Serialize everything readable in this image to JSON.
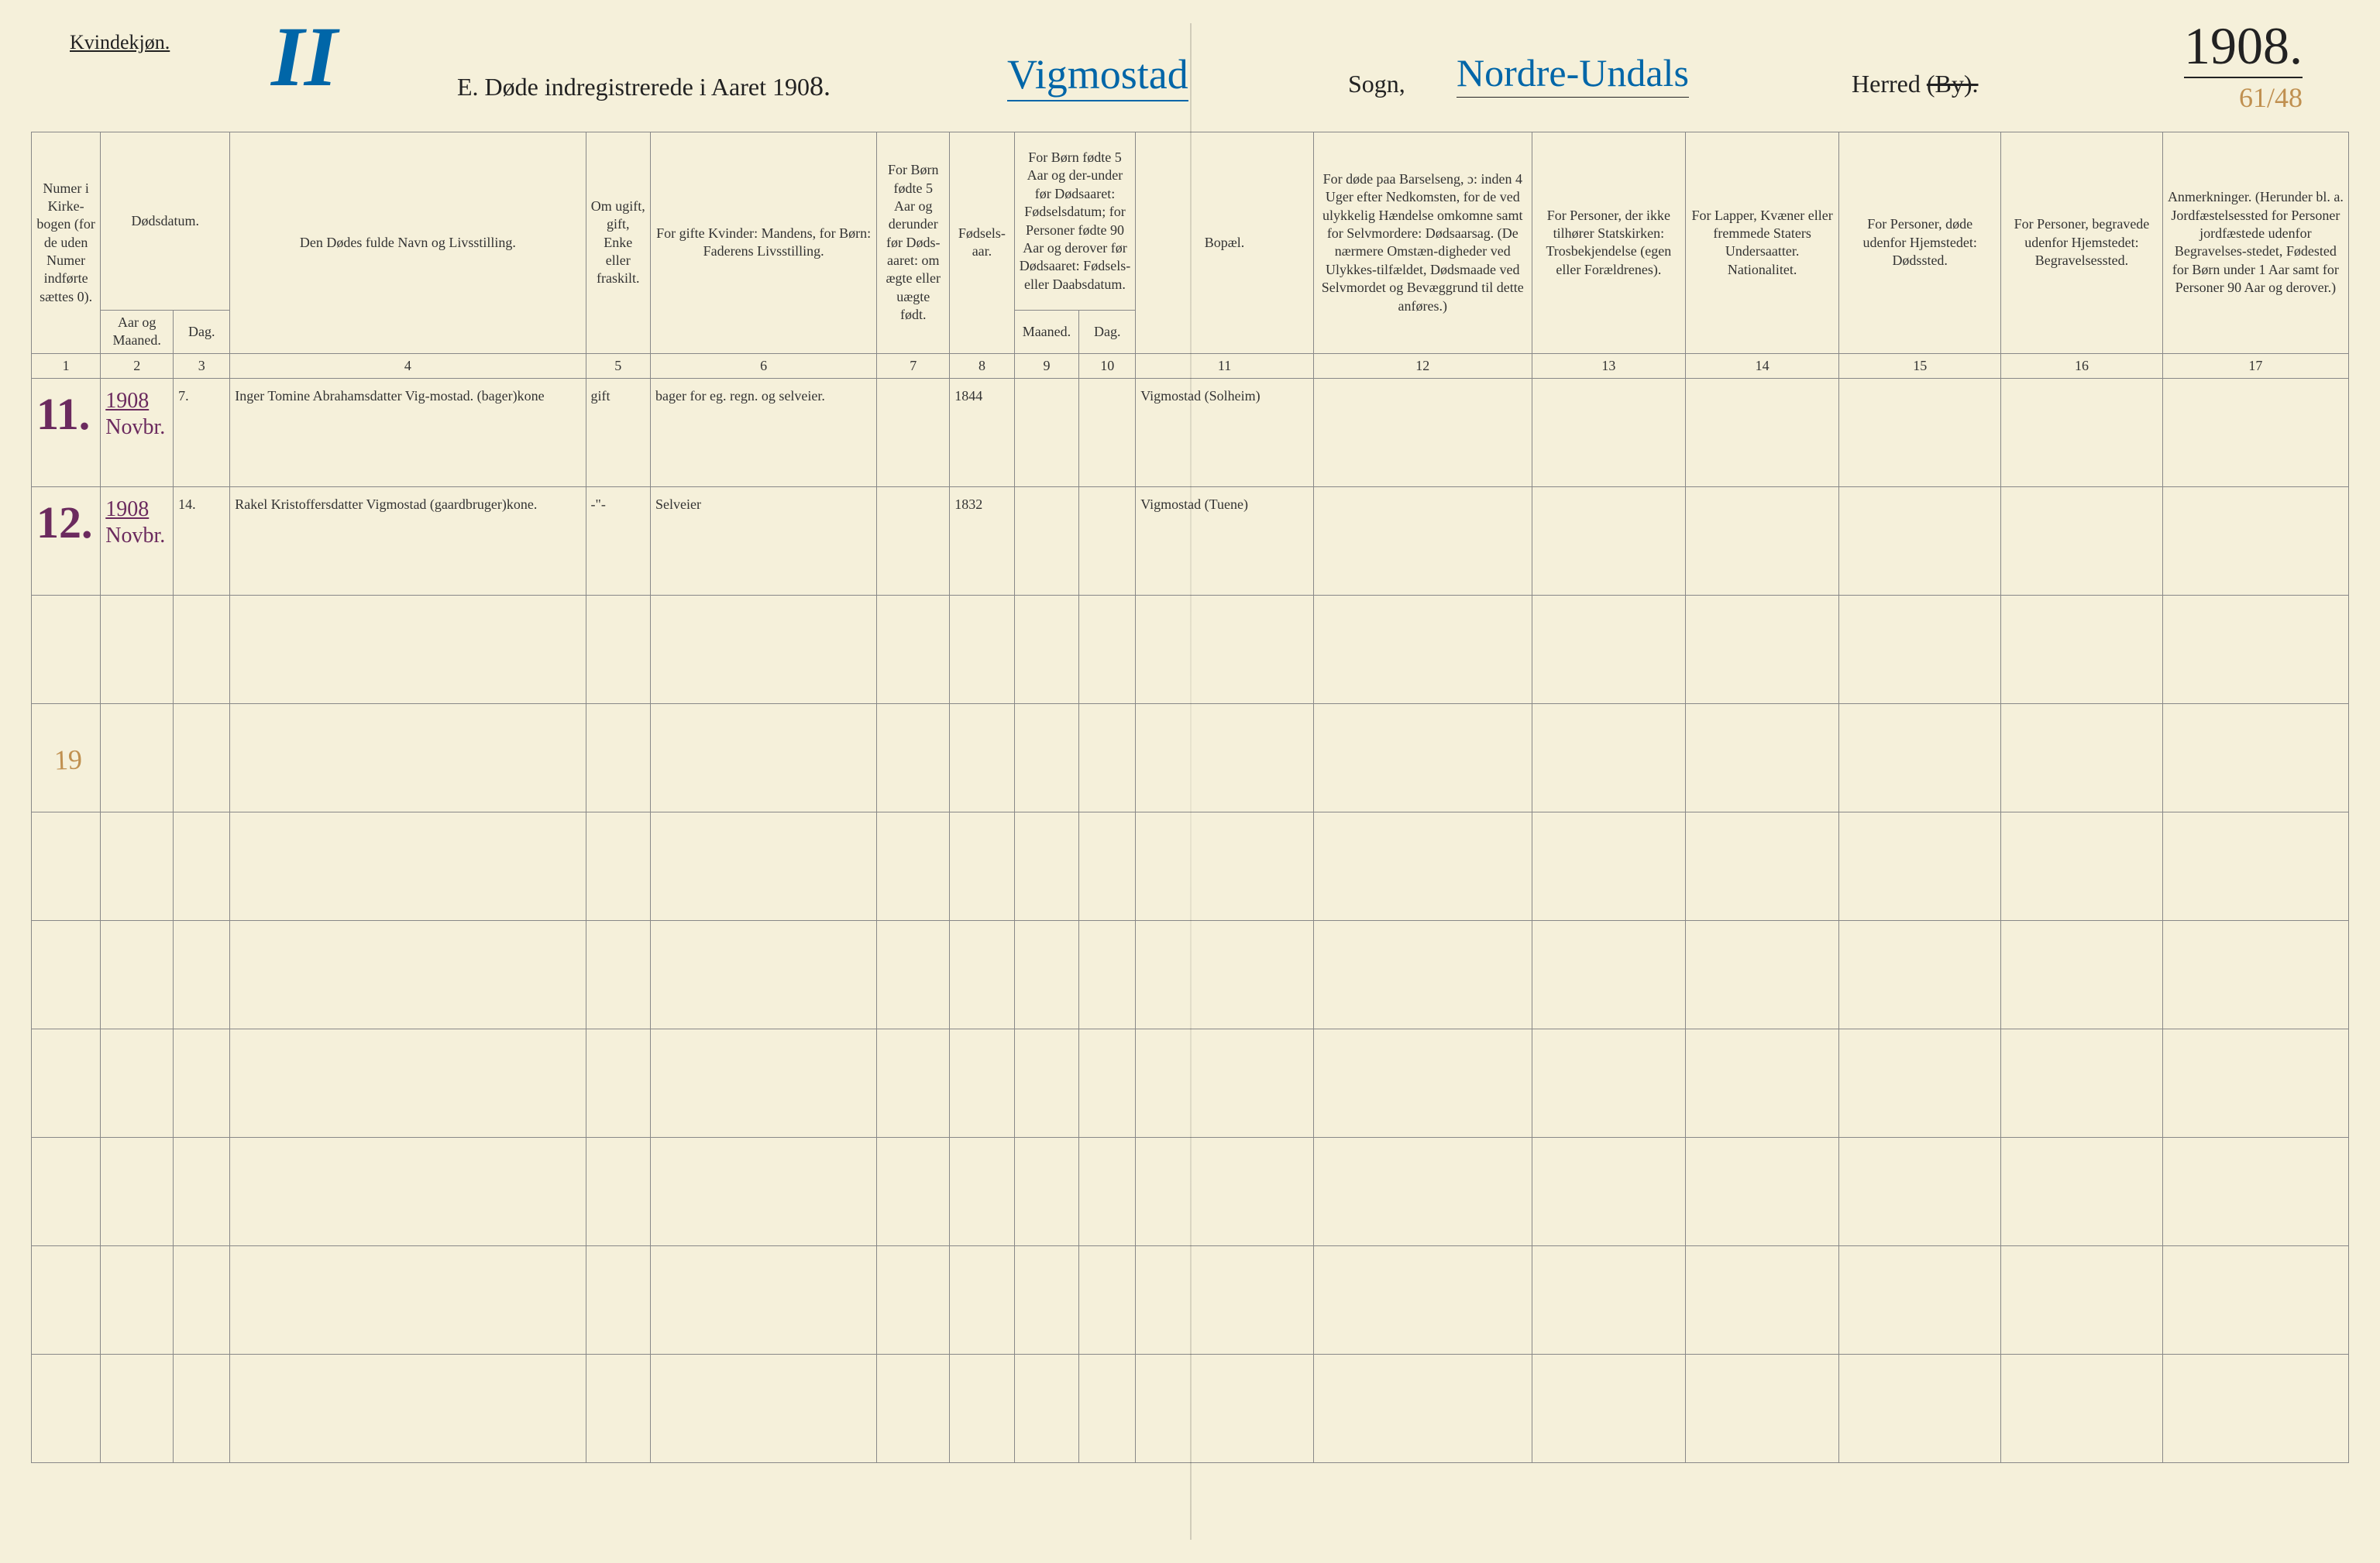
{
  "header": {
    "kvindekjon": "Kvindekjøn.",
    "roman": "II",
    "title_prefix": "E.  Døde indregistrerede i Aaret 190",
    "title_year_digit": "8.",
    "sogn_name": "Vigmostad",
    "sogn_label": "Sogn,",
    "herred_name": "Nordre-Undals",
    "herred_label": "Herred",
    "herred_by": "(By).",
    "top_year": "1908.",
    "folio": "61/48"
  },
  "columns": {
    "c1": "Numer i Kirke-bogen (for de uden Numer indførte sættes 0).",
    "c2_top": "Dødsdatum.",
    "c2a": "Aar og Maaned.",
    "c2b": "Dag.",
    "c4": "Den Dødes fulde Navn og Livsstilling.",
    "c5": "Om ugift, gift, Enke eller fraskilt.",
    "c6": "For gifte Kvinder: Mandens, for Børn: Faderens Livsstilling.",
    "c7": "For Børn fødte 5 Aar og derunder før Døds-aaret: om ægte eller uægte født.",
    "c8": "Fødsels-aar.",
    "c9_top": "For Børn fødte 5 Aar og der-under før Dødsaaret: Fødselsdatum; for Personer fødte 90 Aar og derover før Dødsaaret: Fødsels- eller Daabsdatum.",
    "c9a": "Maaned.",
    "c9b": "Dag.",
    "c11": "Bopæl.",
    "c12": "For døde paa Barselseng, ɔ: inden 4 Uger efter Nedkomsten, for de ved ulykkelig Hændelse omkomne samt for Selvmordere: Dødsaarsag. (De nærmere Omstæn-digheder ved Ulykkes-tilfældet, Dødsmaade ved Selvmordet og Bevæggrund til dette anføres.)",
    "c13": "For Personer, der ikke tilhører Statskirken: Trosbekjendelse (egen eller Forældrenes).",
    "c14": "For Lapper, Kvæner eller fremmede Staters Undersaatter. Nationalitet.",
    "c15": "For Personer, døde udenfor Hjemstedet: Dødssted.",
    "c16": "For Personer, begravede udenfor Hjemstedet: Begravelsessted.",
    "c17": "Anmerkninger. (Herunder bl. a. Jordfæstelsessted for Personer jordfæstede udenfor Begravelses-stedet, Fødested for Børn under 1 Aar samt for Personer 90 Aar og derover.)"
  },
  "colnums": [
    "1",
    "2",
    "3",
    "4",
    "5",
    "6",
    "7",
    "8",
    "9",
    "10",
    "11",
    "12",
    "13",
    "14",
    "15",
    "16",
    "17"
  ],
  "rows": [
    {
      "num": "11.",
      "year": "1908",
      "month": "Novbr.",
      "day": "7.",
      "name": "Inger Tomine Abrahamsdatter Vig-mostad. (bager)kone",
      "civil": "gift",
      "husband": "bager for eg. regn. og selveier.",
      "c7": "",
      "birth": "1844",
      "c9a": "",
      "c9b": "",
      "residence": "Vigmostad (Solheim)",
      "c12": "",
      "c13": "",
      "c14": "",
      "c15": "",
      "c16": "",
      "c17": ""
    },
    {
      "num": "12.",
      "year": "1908",
      "month": "Novbr.",
      "day": "14.",
      "name": "Rakel Kristoffersdatter Vigmostad (gaardbruger)kone.",
      "civil": "-\"-",
      "husband": "Selveier",
      "c7": "",
      "birth": "1832",
      "c9a": "",
      "c9b": "",
      "residence": "Vigmostad (Tuene)",
      "c12": "",
      "c13": "",
      "c14": "",
      "c15": "",
      "c16": "",
      "c17": ""
    }
  ],
  "margin_note": "19",
  "style": {
    "bg": "#f5f0da",
    "ink_printed": "#333",
    "ink_hand_purple": "#6b2a5e",
    "ink_hand_blue": "#0066a8",
    "ink_pencil": "#c09050",
    "border": "#888"
  }
}
